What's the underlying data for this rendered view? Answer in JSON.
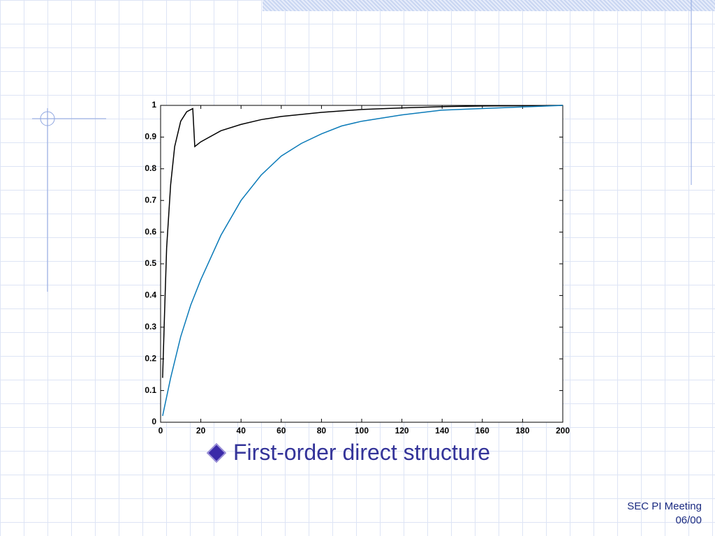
{
  "chart_data": {
    "type": "line",
    "xlim": [
      0,
      200
    ],
    "ylim": [
      0,
      1
    ],
    "xticks": [
      0,
      20,
      40,
      60,
      80,
      100,
      120,
      140,
      160,
      180,
      200
    ],
    "yticks": [
      0,
      0.1,
      0.2,
      0.3,
      0.4,
      0.5,
      0.6,
      0.7,
      0.8,
      0.9,
      1
    ],
    "series": [
      {
        "color": "#000000",
        "x": [
          1,
          2,
          3,
          5,
          7,
          10,
          13,
          16,
          17,
          20,
          30,
          40,
          50,
          60,
          80,
          100,
          120,
          140,
          160,
          200
        ],
        "values": [
          0.14,
          0.35,
          0.55,
          0.75,
          0.87,
          0.95,
          0.98,
          0.99,
          0.87,
          0.885,
          0.92,
          0.94,
          0.955,
          0.965,
          0.978,
          0.987,
          0.992,
          0.996,
          0.998,
          1.0
        ]
      },
      {
        "color": "#0a7ab8",
        "x": [
          1,
          5,
          10,
          15,
          20,
          30,
          40,
          50,
          60,
          70,
          80,
          90,
          100,
          120,
          140,
          160,
          180,
          200
        ],
        "values": [
          0.02,
          0.14,
          0.27,
          0.37,
          0.45,
          0.59,
          0.7,
          0.78,
          0.84,
          0.88,
          0.91,
          0.935,
          0.95,
          0.97,
          0.985,
          0.99,
          0.995,
          1.0
        ]
      }
    ]
  },
  "bullet": "First-order direct structure",
  "footer": [
    "SEC PI Meeting",
    "06/00"
  ]
}
